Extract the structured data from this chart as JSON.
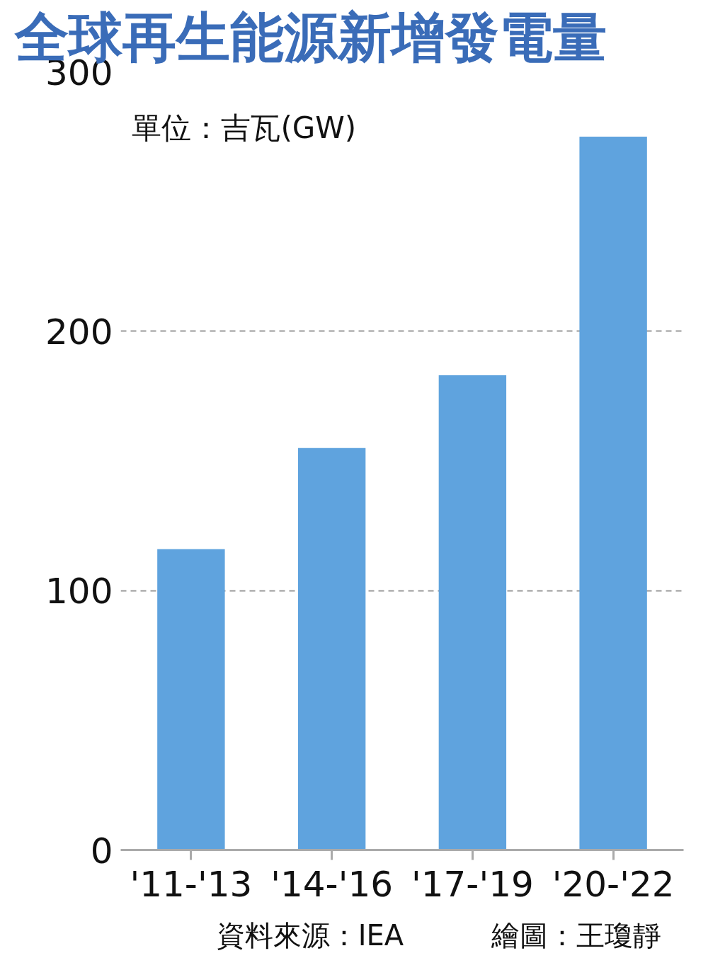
{
  "chart_data": {
    "type": "bar",
    "title": "全球再生能源新增發電量",
    "categories": [
      "'11-'13",
      "'14-'16",
      "'17-'19",
      "'20-'22"
    ],
    "values": [
      116,
      155,
      183,
      275
    ],
    "color": "#5fa3de",
    "ylim": [
      0,
      300
    ],
    "yticks": [
      0,
      100,
      200,
      300
    ],
    "grid": "y",
    "annotations": [
      "單位：吉瓦(GW)",
      "資料來源：IEA",
      "繪圖：王瓊靜"
    ]
  }
}
